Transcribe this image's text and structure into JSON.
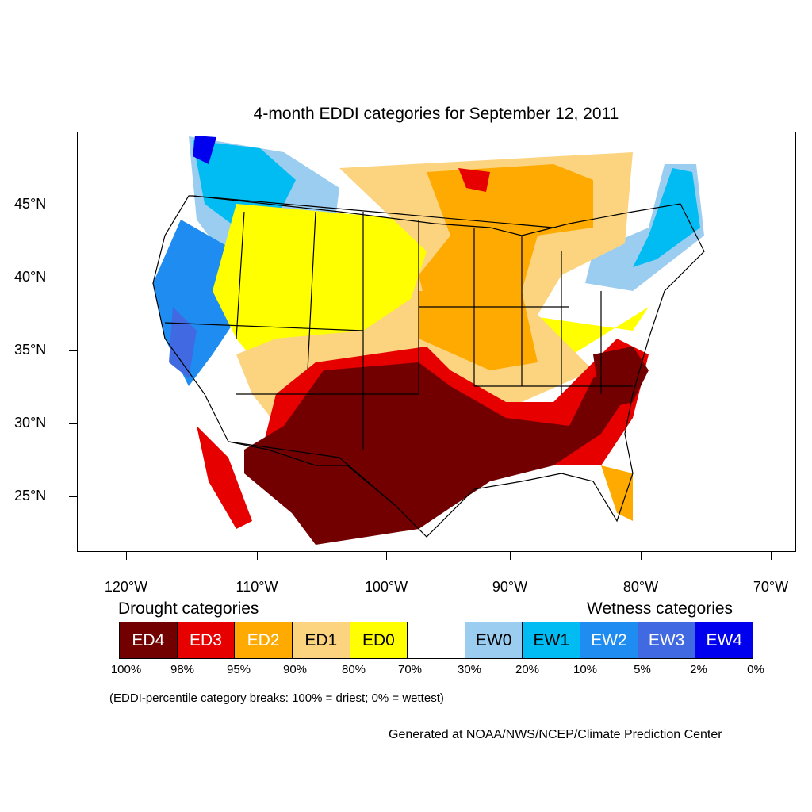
{
  "title": "4-month EDDI categories for September 12, 2011",
  "latitude_labels": [
    "45°N",
    "40°N",
    "35°N",
    "30°N",
    "25°N"
  ],
  "longitude_labels": [
    "120°W",
    "110°W",
    "100°W",
    "90°W",
    "80°W",
    "70°W"
  ],
  "legend": {
    "drought_heading": "Drought categories",
    "wetness_heading": "Wetness categories",
    "categories": [
      {
        "label": "ED4",
        "color": "#730000",
        "text_color": "#ffffff"
      },
      {
        "label": "ED3",
        "color": "#e60000",
        "text_color": "#ffffff"
      },
      {
        "label": "ED2",
        "color": "#ffaa00",
        "text_color": "#ffffff"
      },
      {
        "label": "ED1",
        "color": "#fcd37f",
        "text_color": "#000000"
      },
      {
        "label": "ED0",
        "color": "#ffff00",
        "text_color": "#000000"
      },
      {
        "label": "",
        "color": "#ffffff",
        "text_color": "#000000"
      },
      {
        "label": "EW0",
        "color": "#9bcdf0",
        "text_color": "#000000"
      },
      {
        "label": "EW1",
        "color": "#00bcf2",
        "text_color": "#000000"
      },
      {
        "label": "EW2",
        "color": "#1e8cf0",
        "text_color": "#ffffff"
      },
      {
        "label": "EW3",
        "color": "#4169e1",
        "text_color": "#ffffff"
      },
      {
        "label": "EW4",
        "color": "#0000ee",
        "text_color": "#ffffff"
      }
    ],
    "percentiles": [
      "100%",
      "98%",
      "95%",
      "90%",
      "80%",
      "70%",
      "30%",
      "20%",
      "10%",
      "5%",
      "2%",
      "0%"
    ]
  },
  "note": "(EDDI-percentile category breaks: 100% = driest; 0% = wettest)",
  "credit": "Generated at NOAA/NWS/NCEP/Climate Prediction Center"
}
